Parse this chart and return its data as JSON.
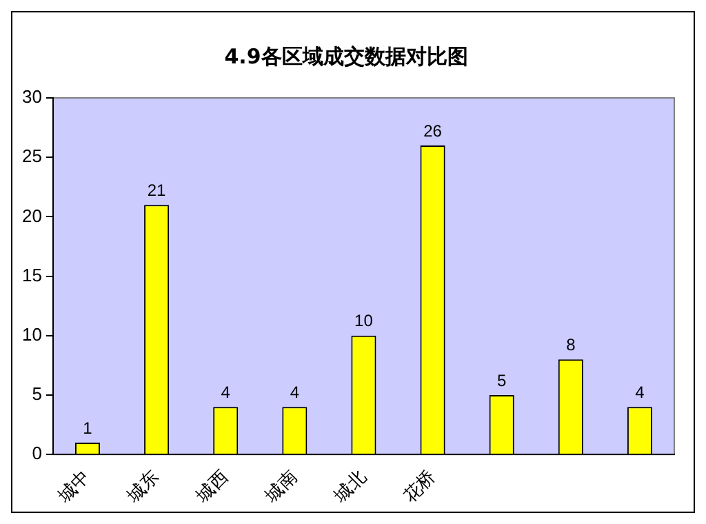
{
  "chart_data": {
    "type": "bar",
    "title": "4.9各区域成交数据对比图",
    "categories": [
      "城中",
      "城东",
      "城西",
      "城南",
      "城北",
      "花桥",
      null,
      null,
      null
    ],
    "values": [
      1,
      21,
      4,
      4,
      10,
      26,
      5,
      8,
      4
    ],
    "color": "#ffff00",
    "ylim": [
      0,
      30
    ],
    "yticks": [
      0,
      5,
      10,
      15,
      20,
      25,
      30
    ],
    "grid": false,
    "legend": false,
    "data_labels": true
  }
}
